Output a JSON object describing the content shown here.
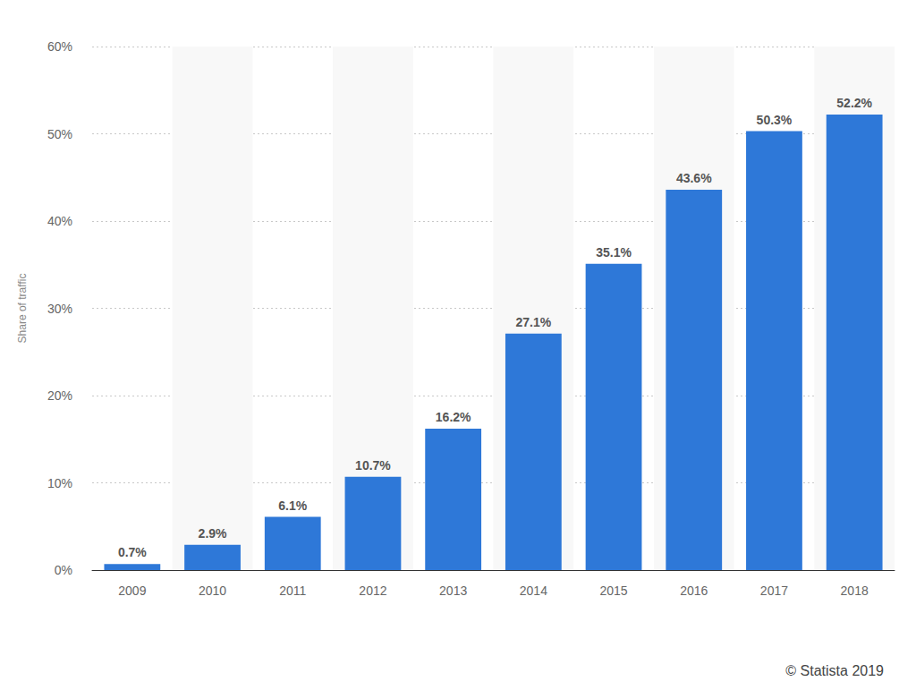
{
  "chart_data": {
    "type": "bar",
    "y_label": "Share of traffic",
    "categories": [
      "2009",
      "2010",
      "2011",
      "2012",
      "2013",
      "2014",
      "2015",
      "2016",
      "2017",
      "2018"
    ],
    "values": [
      0.7,
      2.9,
      6.1,
      10.7,
      16.2,
      27.1,
      35.1,
      43.6,
      50.3,
      52.2
    ],
    "value_labels": [
      "0.7%",
      "2.9%",
      "6.1%",
      "10.7%",
      "16.2%",
      "27.1%",
      "35.1%",
      "43.6%",
      "50.3%",
      "52.2%"
    ],
    "data_labels": true,
    "color": "#2e78d8",
    "ylim": [
      0,
      60
    ],
    "yticks": [
      {
        "value": 0,
        "label": "0%"
      },
      {
        "value": 10,
        "label": "10%"
      },
      {
        "value": 20,
        "label": "20%"
      },
      {
        "value": 30,
        "label": "30%"
      },
      {
        "value": 40,
        "label": "40%"
      },
      {
        "value": 50,
        "label": "50%"
      },
      {
        "value": 60,
        "label": "60%"
      }
    ],
    "grid": true,
    "annotations": [
      "© Statista 2019"
    ]
  }
}
